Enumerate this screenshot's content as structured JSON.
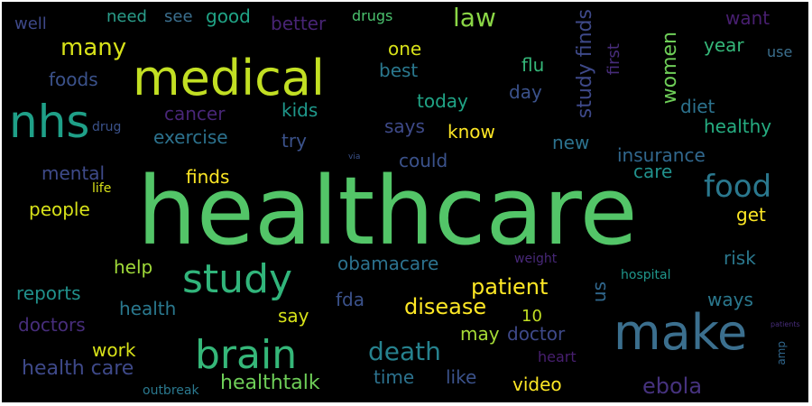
{
  "background_color": "#000000",
  "words": [
    {
      "id": "healthcare",
      "text": "healthcare",
      "color": "#53c568",
      "vertical": false
    },
    {
      "id": "medical",
      "text": "medical",
      "color": "#c2df23",
      "vertical": false
    },
    {
      "id": "nhs",
      "text": "nhs",
      "color": "#1fa088",
      "vertical": false
    },
    {
      "id": "make",
      "text": "make",
      "color": "#3b6f8e",
      "vertical": false
    },
    {
      "id": "brain",
      "text": "brain",
      "color": "#35b779",
      "vertical": false
    },
    {
      "id": "study",
      "text": "study",
      "color": "#31b57b",
      "vertical": false
    },
    {
      "id": "food",
      "text": "food",
      "color": "#2a788e",
      "vertical": false
    },
    {
      "id": "study-finds",
      "text": "study finds",
      "color": "#3e4989",
      "vertical": true
    },
    {
      "id": "women",
      "text": "women",
      "color": "#6ece58",
      "vertical": true
    },
    {
      "id": "law",
      "text": "law",
      "color": "#8bd646",
      "vertical": false
    },
    {
      "id": "many",
      "text": "many",
      "color": "#d8e219",
      "vertical": false
    },
    {
      "id": "death",
      "text": "death",
      "color": "#26828e",
      "vertical": false
    },
    {
      "id": "ebola",
      "text": "ebola",
      "color": "#46327e",
      "vertical": false
    },
    {
      "id": "disease",
      "text": "disease",
      "color": "#fde725",
      "vertical": false
    },
    {
      "id": "patient",
      "text": "patient",
      "color": "#fde725",
      "vertical": false
    },
    {
      "id": "healthtalk",
      "text": "healthtalk",
      "color": "#6ece58",
      "vertical": false
    },
    {
      "id": "health-care",
      "text": "health care",
      "color": "#3e4989",
      "vertical": false
    },
    {
      "id": "insurance",
      "text": "insurance",
      "color": "#31688e",
      "vertical": false
    },
    {
      "id": "healthy",
      "text": "healthy",
      "color": "#26ad81",
      "vertical": false
    },
    {
      "id": "obamacare",
      "text": "obamacare",
      "color": "#2c728e",
      "vertical": false
    },
    {
      "id": "reports",
      "text": "reports",
      "color": "#21918c",
      "vertical": false
    },
    {
      "id": "doctors",
      "text": "doctors",
      "color": "#472d7b",
      "vertical": false
    },
    {
      "id": "doctor",
      "text": "doctor",
      "color": "#3e4989",
      "vertical": false
    },
    {
      "id": "video",
      "text": "video",
      "color": "#fde725",
      "vertical": false
    },
    {
      "id": "exercise",
      "text": "exercise",
      "color": "#2c728e",
      "vertical": false
    },
    {
      "id": "cancer",
      "text": "cancer",
      "color": "#482677",
      "vertical": false
    },
    {
      "id": "kids",
      "text": "kids",
      "color": "#1f988b",
      "vertical": false
    },
    {
      "id": "says",
      "text": "says",
      "color": "#3e4a89",
      "vertical": false
    },
    {
      "id": "today",
      "text": "today",
      "color": "#20a486",
      "vertical": false
    },
    {
      "id": "best",
      "text": "best",
      "color": "#2a788e",
      "vertical": false
    },
    {
      "id": "one",
      "text": "one",
      "color": "#d8e219",
      "vertical": false
    },
    {
      "id": "flu",
      "text": "flu",
      "color": "#35b779",
      "vertical": false
    },
    {
      "id": "day",
      "text": "day",
      "color": "#3b528b",
      "vertical": false
    },
    {
      "id": "foods",
      "text": "foods",
      "color": "#3b528b",
      "vertical": false
    },
    {
      "id": "well",
      "text": "well",
      "color": "#3e4989",
      "vertical": false
    },
    {
      "id": "need",
      "text": "need",
      "color": "#2a9d8a",
      "vertical": false
    },
    {
      "id": "see",
      "text": "see",
      "color": "#3b6f8e",
      "vertical": false
    },
    {
      "id": "good",
      "text": "good",
      "color": "#20a486",
      "vertical": false
    },
    {
      "id": "better",
      "text": "better",
      "color": "#482475",
      "vertical": false
    },
    {
      "id": "drugs",
      "text": "drugs",
      "color": "#4ac16d",
      "vertical": false
    },
    {
      "id": "want",
      "text": "want",
      "color": "#481f70",
      "vertical": false
    },
    {
      "id": "year",
      "text": "year",
      "color": "#35b779",
      "vertical": false
    },
    {
      "id": "use",
      "text": "use",
      "color": "#3b6f8e",
      "vertical": false
    },
    {
      "id": "first",
      "text": "first",
      "color": "#472c7a",
      "vertical": true
    },
    {
      "id": "diet",
      "text": "diet",
      "color": "#2c728e",
      "vertical": false
    },
    {
      "id": "know",
      "text": "know",
      "color": "#fde725",
      "vertical": false
    },
    {
      "id": "new",
      "text": "new",
      "color": "#2c728e",
      "vertical": false
    },
    {
      "id": "try",
      "text": "try",
      "color": "#3b528b",
      "vertical": false
    },
    {
      "id": "drug",
      "text": "drug",
      "color": "#3b528b",
      "vertical": false
    },
    {
      "id": "could",
      "text": "could",
      "color": "#3b528b",
      "vertical": false
    },
    {
      "id": "mental",
      "text": "mental",
      "color": "#3e4a89",
      "vertical": false
    },
    {
      "id": "finds",
      "text": "finds",
      "color": "#fde725",
      "vertical": false
    },
    {
      "id": "life",
      "text": "life",
      "color": "#d8e219",
      "vertical": false
    },
    {
      "id": "people",
      "text": "people",
      "color": "#d8e219",
      "vertical": false
    },
    {
      "id": "care",
      "text": "care",
      "color": "#21918c",
      "vertical": false
    },
    {
      "id": "get",
      "text": "get",
      "color": "#fde725",
      "vertical": false
    },
    {
      "id": "risk",
      "text": "risk",
      "color": "#2a788e",
      "vertical": false
    },
    {
      "id": "ways",
      "text": "ways",
      "color": "#2a788e",
      "vertical": false
    },
    {
      "id": "help",
      "text": "help",
      "color": "#a0da39",
      "vertical": false
    },
    {
      "id": "weight",
      "text": "weight",
      "color": "#482878",
      "vertical": false
    },
    {
      "id": "hospital",
      "text": "hospital",
      "color": "#1f968b",
      "vertical": false
    },
    {
      "id": "us",
      "text": "us",
      "color": "#31688e",
      "vertical": true
    },
    {
      "id": "fda",
      "text": "fda",
      "color": "#3b528b",
      "vertical": false
    },
    {
      "id": "health",
      "text": "health",
      "color": "#2a788e",
      "vertical": false
    },
    {
      "id": "say",
      "text": "say",
      "color": "#d8e219",
      "vertical": false
    },
    {
      "id": "10",
      "text": "10",
      "color": "#c2df23",
      "vertical": false
    },
    {
      "id": "may",
      "text": "may",
      "color": "#a5db36",
      "vertical": false
    },
    {
      "id": "work",
      "text": "work",
      "color": "#d8e219",
      "vertical": false
    },
    {
      "id": "heart",
      "text": "heart",
      "color": "#481f70",
      "vertical": false
    },
    {
      "id": "time",
      "text": "time",
      "color": "#2c728e",
      "vertical": false
    },
    {
      "id": "like",
      "text": "like",
      "color": "#3b528b",
      "vertical": false
    },
    {
      "id": "outbreak",
      "text": "outbreak",
      "color": "#2a788e",
      "vertical": false
    },
    {
      "id": "via",
      "text": "via",
      "color": "#3b528b",
      "vertical": false
    },
    {
      "id": "patients",
      "text": "patients",
      "color": "#472d7b",
      "vertical": false
    },
    {
      "id": "amp",
      "text": "amp",
      "color": "#31688e",
      "vertical": true
    }
  ]
}
